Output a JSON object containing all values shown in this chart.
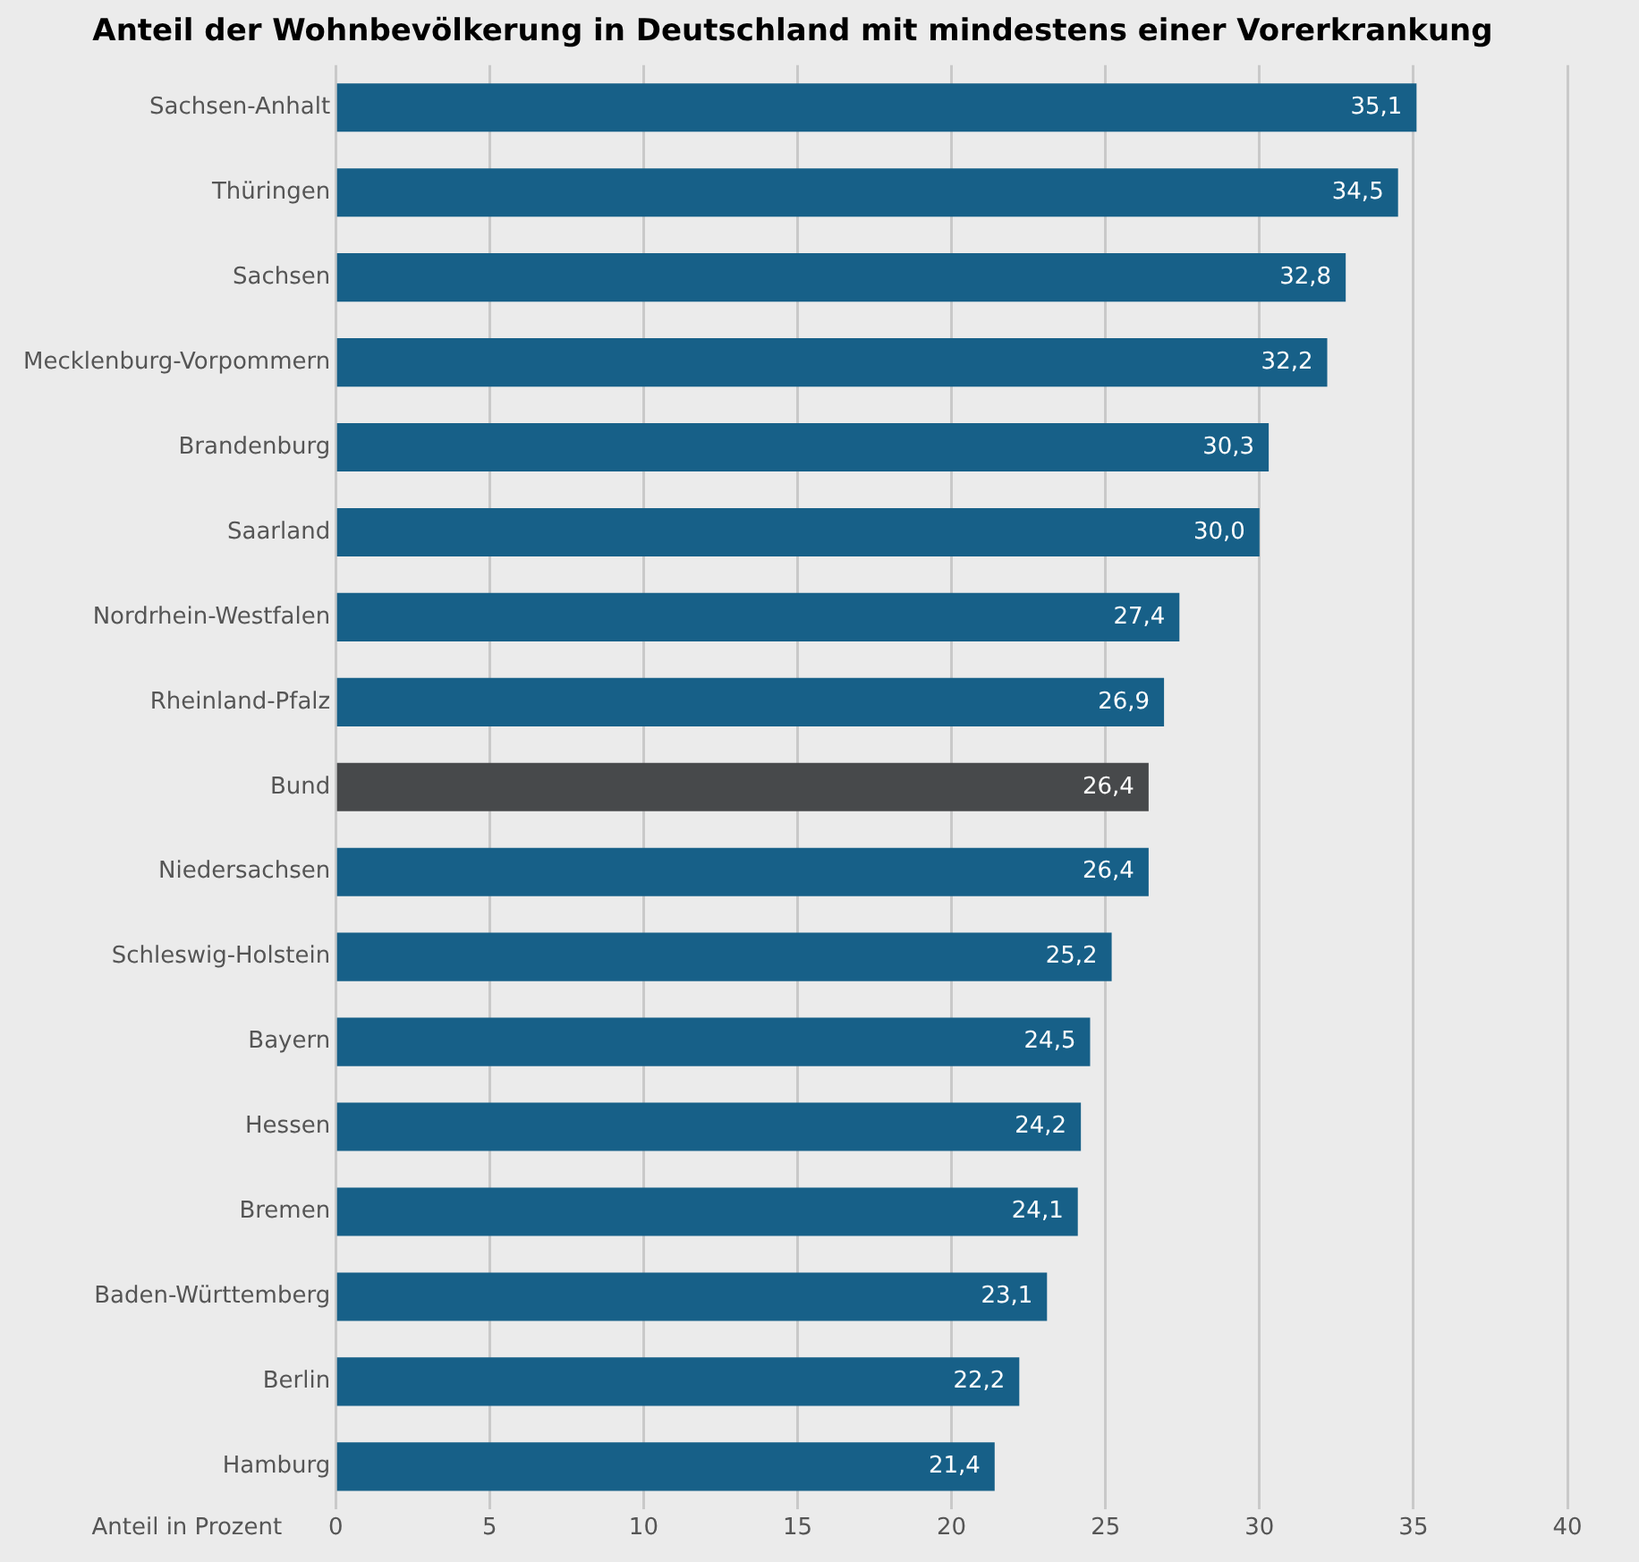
{
  "chart_data": {
    "type": "bar",
    "orientation": "horizontal",
    "title": "Anteil der Wohnbevölkerung in Deutschland mit mindestens einer Vorerkrankung",
    "xlabel": "Anteil in Prozent",
    "categories": [
      "Sachsen-Anhalt",
      "Thüringen",
      "Sachsen",
      "Mecklenburg-Vorpommern",
      "Brandenburg",
      "Saarland",
      "Nordrhein-Westfalen",
      "Rheinland-Pfalz",
      "Bund",
      "Niedersachsen",
      "Schleswig-Holstein",
      "Bayern",
      "Hessen",
      "Bremen",
      "Baden-Württemberg",
      "Berlin",
      "Hamburg"
    ],
    "values": [
      35.1,
      34.5,
      32.8,
      32.2,
      30.3,
      30.0,
      27.4,
      26.9,
      26.4,
      26.4,
      25.2,
      24.5,
      24.2,
      24.1,
      23.1,
      22.2,
      21.4
    ],
    "value_labels": [
      "35,1",
      "34,5",
      "32,8",
      "32,2",
      "30,3",
      "30,0",
      "27,4",
      "26,9",
      "26,4",
      "26,4",
      "25,2",
      "24,5",
      "24,2",
      "24,1",
      "23,1",
      "22,2",
      "21,4"
    ],
    "colors": [
      "#176088",
      "#176088",
      "#176088",
      "#176088",
      "#176088",
      "#176088",
      "#176088",
      "#176088",
      "#47494b",
      "#176088",
      "#176088",
      "#176088",
      "#176088",
      "#176088",
      "#176088",
      "#176088",
      "#176088"
    ],
    "xlim": [
      0,
      40
    ],
    "xticks": [
      0,
      5,
      10,
      15,
      20,
      25,
      30,
      35,
      40
    ],
    "grid": "x",
    "legend": false
  }
}
